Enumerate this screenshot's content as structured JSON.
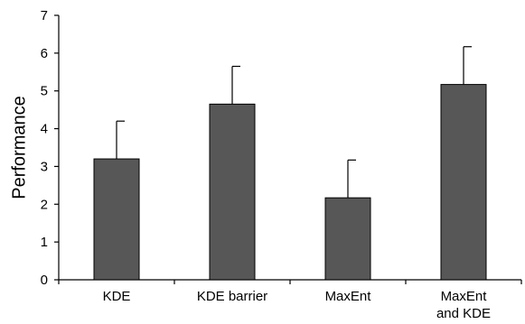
{
  "chart_data": {
    "type": "bar",
    "title": "",
    "xlabel": "",
    "ylabel": "Performance",
    "ylim": [
      0,
      7
    ],
    "yticks": [
      0,
      1,
      2,
      3,
      4,
      5,
      6,
      7
    ],
    "grid": false,
    "categories": [
      [
        "KDE"
      ],
      [
        "KDE barrier"
      ],
      [
        "MaxEnt"
      ],
      [
        "MaxEnt",
        "and KDE"
      ]
    ],
    "values": [
      3.2,
      4.65,
      2.17,
      5.17
    ],
    "error_upper": [
      1.0,
      1.0,
      1.0,
      1.0
    ],
    "colors": {
      "bar": "#575757",
      "axis": "#000000"
    }
  }
}
